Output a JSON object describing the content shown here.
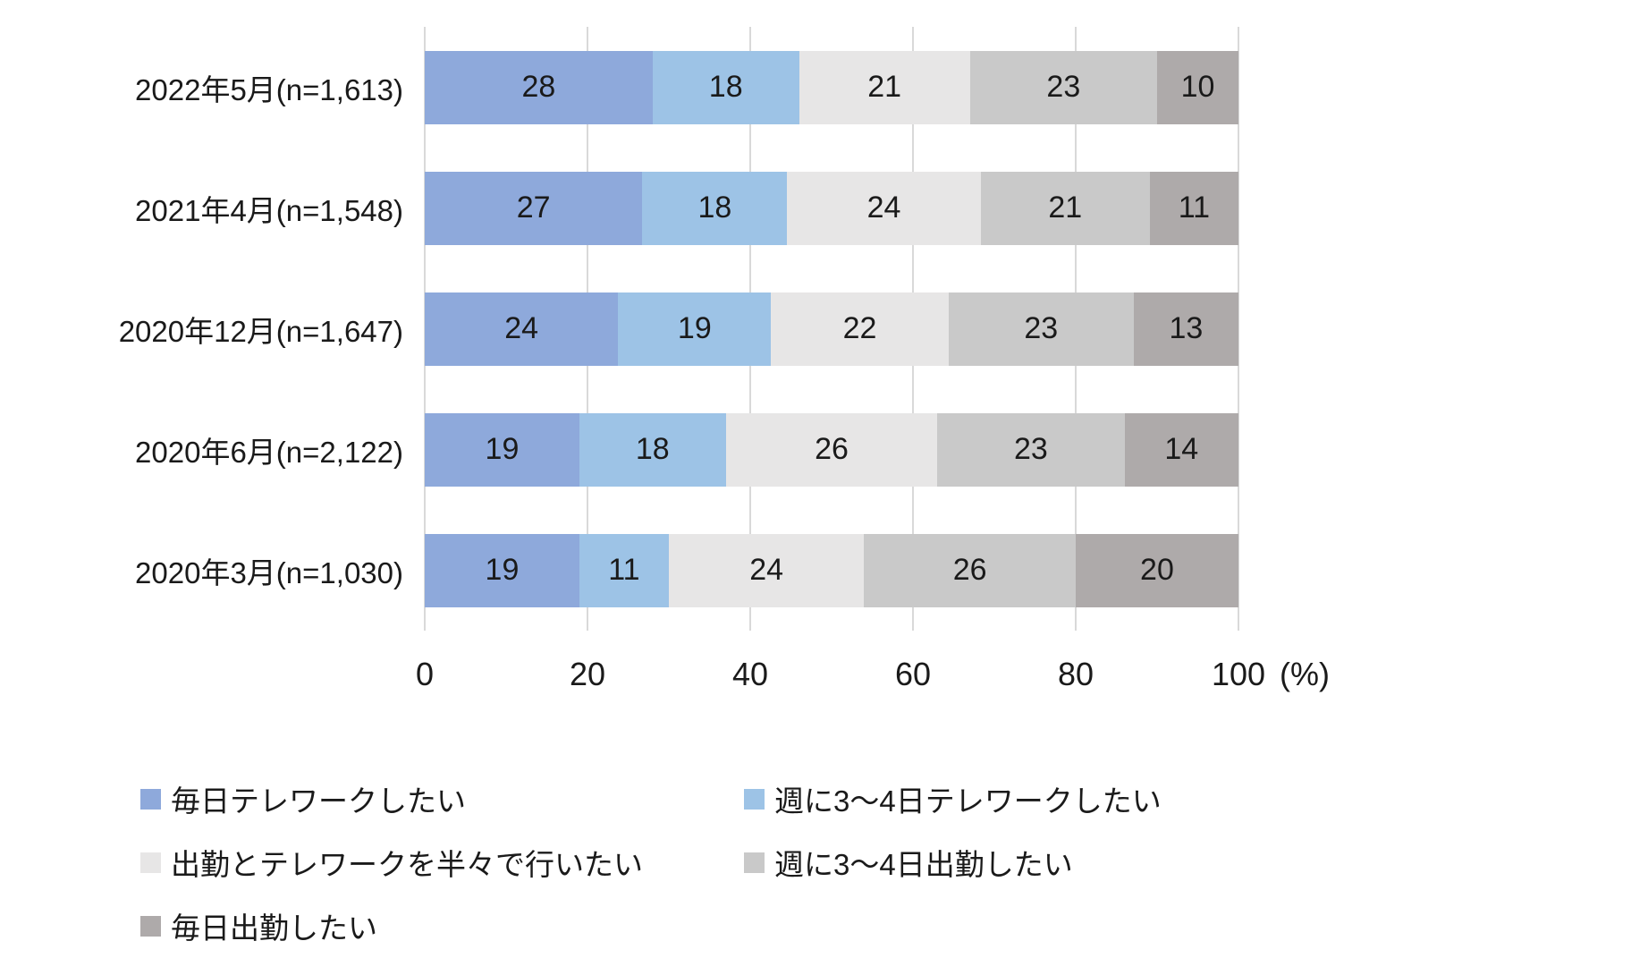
{
  "chart_data": {
    "type": "bar",
    "orientation": "horizontal",
    "stacked": true,
    "stacked_100_percent": true,
    "title": "",
    "categories": [
      "2022年5月(n=1,613)",
      "2021年4月(n=1,548)",
      "2020年12月(n=1,647)",
      "2020年6月(n=2,122)",
      "2020年3月(n=1,030)"
    ],
    "series": [
      {
        "name": "毎日テレワークしたい",
        "color": "#8ea9db",
        "values": [
          28,
          27,
          24,
          19,
          19
        ]
      },
      {
        "name": "週に3〜4日テレワークしたい",
        "color": "#9dc3e6",
        "values": [
          18,
          18,
          19,
          18,
          11
        ]
      },
      {
        "name": "出勤とテレワークを半々で行いたい",
        "color": "#e7e6e6",
        "values": [
          21,
          24,
          22,
          26,
          24
        ]
      },
      {
        "name": "週に3〜4日出勤したい",
        "color": "#c9c9c9",
        "values": [
          23,
          21,
          23,
          23,
          26
        ]
      },
      {
        "name": "毎日出勤したい",
        "color": "#aeaaaa",
        "values": [
          10,
          11,
          13,
          14,
          20
        ]
      }
    ],
    "x_axis": {
      "ticks": [
        0,
        20,
        40,
        60,
        80,
        100
      ],
      "max": 100,
      "unit_label": "(%)"
    },
    "legend_position": "bottom",
    "legend_columns": 2,
    "grid": true,
    "gridline_color": "#d9d9d9",
    "data_label_color": "#1a1a1a",
    "background_color": "#ffffff"
  }
}
